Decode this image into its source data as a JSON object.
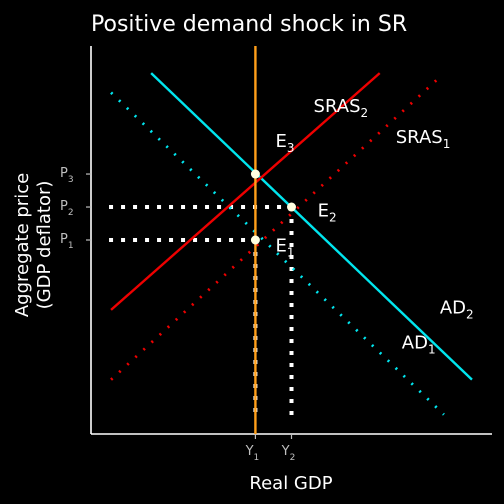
{
  "chart_data": {
    "type": "line",
    "title": "Positive demand shock in SR",
    "xlabel": "Real GDP",
    "ylabel_line1": "Aggregate price",
    "ylabel_line2": "(GDP deflator)",
    "xlim": [
      0,
      10
    ],
    "ylim": [
      0,
      10
    ],
    "grid": false,
    "colors": {
      "background": "#000000",
      "axis": "#ffffff",
      "ad": "#00e5ee",
      "sras": "#ee0000",
      "lras": "#ff9f1a",
      "guide": "#ffffff",
      "text": "#ffffff",
      "tick": "#bfbfbf"
    },
    "series": [
      {
        "id": "ad1",
        "label": {
          "base": "AD",
          "sub": "1"
        },
        "style": "dotted",
        "color": "#00e5ee",
        "points": [
          [
            0.5,
            8.8
          ],
          [
            8.8,
            0.5
          ]
        ],
        "label_at": [
          7.75,
          2.2
        ]
      },
      {
        "id": "ad2",
        "label": {
          "base": "AD",
          "sub": "2"
        },
        "style": "solid",
        "color": "#00e5ee",
        "points": [
          [
            1.5,
            9.3
          ],
          [
            9.5,
            1.4
          ]
        ],
        "label_at": [
          8.7,
          3.1
        ]
      },
      {
        "id": "sras1",
        "label": {
          "base": "SRAS",
          "sub": "1"
        },
        "style": "dotted",
        "color": "#ee0000",
        "points": [
          [
            0.5,
            1.4
          ],
          [
            8.7,
            9.2
          ]
        ],
        "label_at": [
          7.6,
          7.5
        ]
      },
      {
        "id": "sras2",
        "label": {
          "base": "SRAS",
          "sub": "2"
        },
        "style": "solid",
        "color": "#ee0000",
        "points": [
          [
            0.5,
            3.2
          ],
          [
            7.2,
            9.3
          ]
        ],
        "label_at": [
          5.55,
          8.3
        ]
      },
      {
        "id": "lras",
        "label": {
          "base": "",
          "sub": ""
        },
        "style": "solid",
        "color": "#ff9f1a",
        "points": [
          [
            4.1,
            0
          ],
          [
            4.1,
            10
          ]
        ],
        "label_at": [
          4.1,
          10
        ]
      }
    ],
    "equilibria": [
      {
        "id": "e1",
        "label": {
          "base": "E",
          "sub": "1"
        },
        "x": 4.1,
        "y": 5.0,
        "label_at": [
          4.6,
          4.7
        ]
      },
      {
        "id": "e2",
        "label": {
          "base": "E",
          "sub": "2"
        },
        "x": 5.0,
        "y": 5.85,
        "label_at": [
          5.65,
          5.6
        ]
      },
      {
        "id": "e3",
        "label": {
          "base": "E",
          "sub": "3"
        },
        "x": 4.1,
        "y": 6.7,
        "label_at": [
          4.6,
          7.4
        ]
      }
    ],
    "x_ticks": [
      {
        "id": "y1",
        "value": 4.1,
        "label": {
          "base": "Y",
          "sub": "1"
        }
      },
      {
        "id": "y2",
        "value": 5.0,
        "label": {
          "base": "Y",
          "sub": "2"
        }
      }
    ],
    "y_ticks": [
      {
        "id": "p1",
        "value": 5.0,
        "label": {
          "base": "P",
          "sub": "1"
        }
      },
      {
        "id": "p2",
        "value": 5.85,
        "label": {
          "base": "P",
          "sub": "2"
        }
      },
      {
        "id": "p3",
        "value": 6.7,
        "label": {
          "base": "P",
          "sub": "3"
        }
      }
    ]
  }
}
